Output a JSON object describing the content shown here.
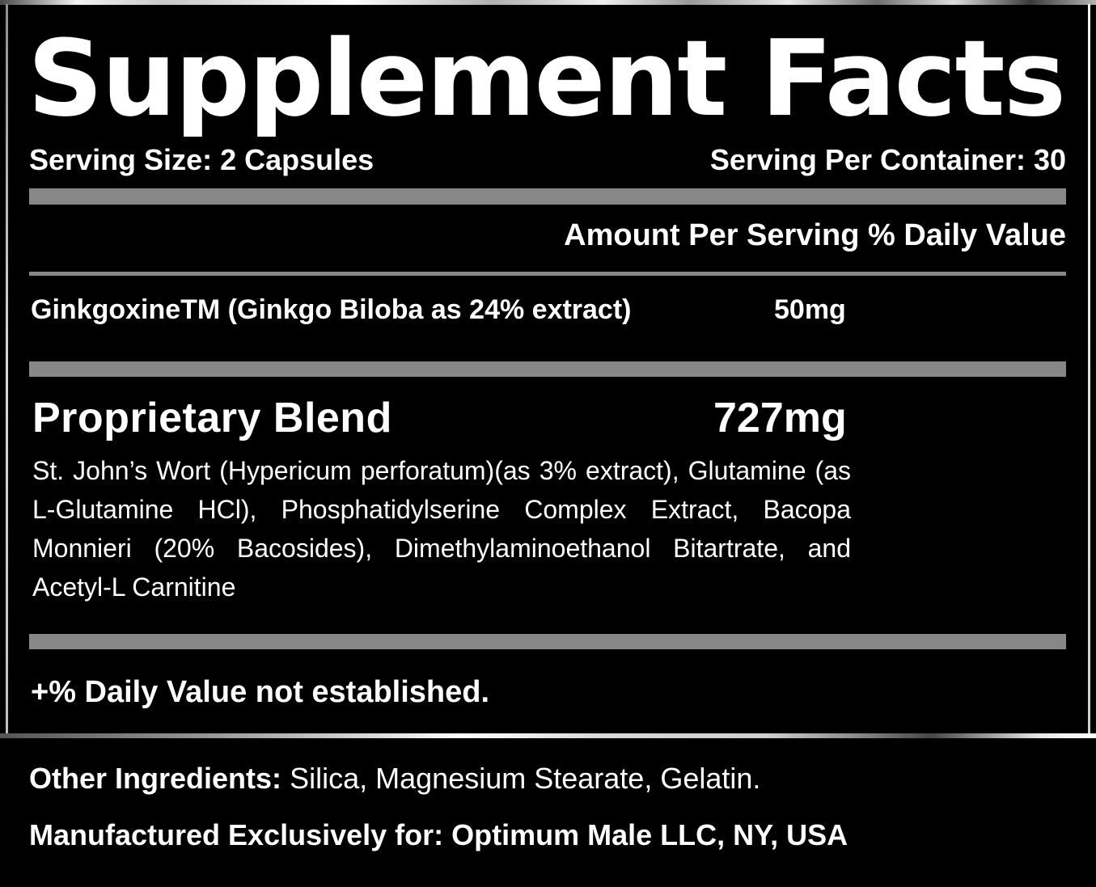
{
  "label": {
    "title": "Supplement Facts",
    "serving_size": "Serving Size: 2 Capsules",
    "servings_per_container": "Serving Per Container: 30",
    "column_header": "Amount Per Serving % Daily Value",
    "rows": [
      {
        "name": "GinkgoxineTM (Ginkgo Biloba as 24% extract)",
        "amount": "50mg"
      }
    ],
    "blend": {
      "name": "Proprietary Blend",
      "amount": "727mg",
      "ingredients": "St. John’s Wort (Hypericum perforatum)(as 3% extract), Glutamine (as L-Glutamine HCl), Phosphatidylserine Complex Extract, Bacopa Monnieri (20% Bacosides), Dimethylaminoethanol Bitartrate, and Acetyl-L Carnitine"
    },
    "footnote": "+% Daily Value not established.",
    "other_ingredients": {
      "label": "Other Ingredients:",
      "value": "Silica, Magnesium Stearate, Gelatin."
    },
    "manufactured": "Manufactured Exclusively for: Optimum Male LLC, NY, USA"
  },
  "colors": {
    "background": "#000000",
    "text": "#ffffff",
    "separator_bar": "#878787"
  }
}
